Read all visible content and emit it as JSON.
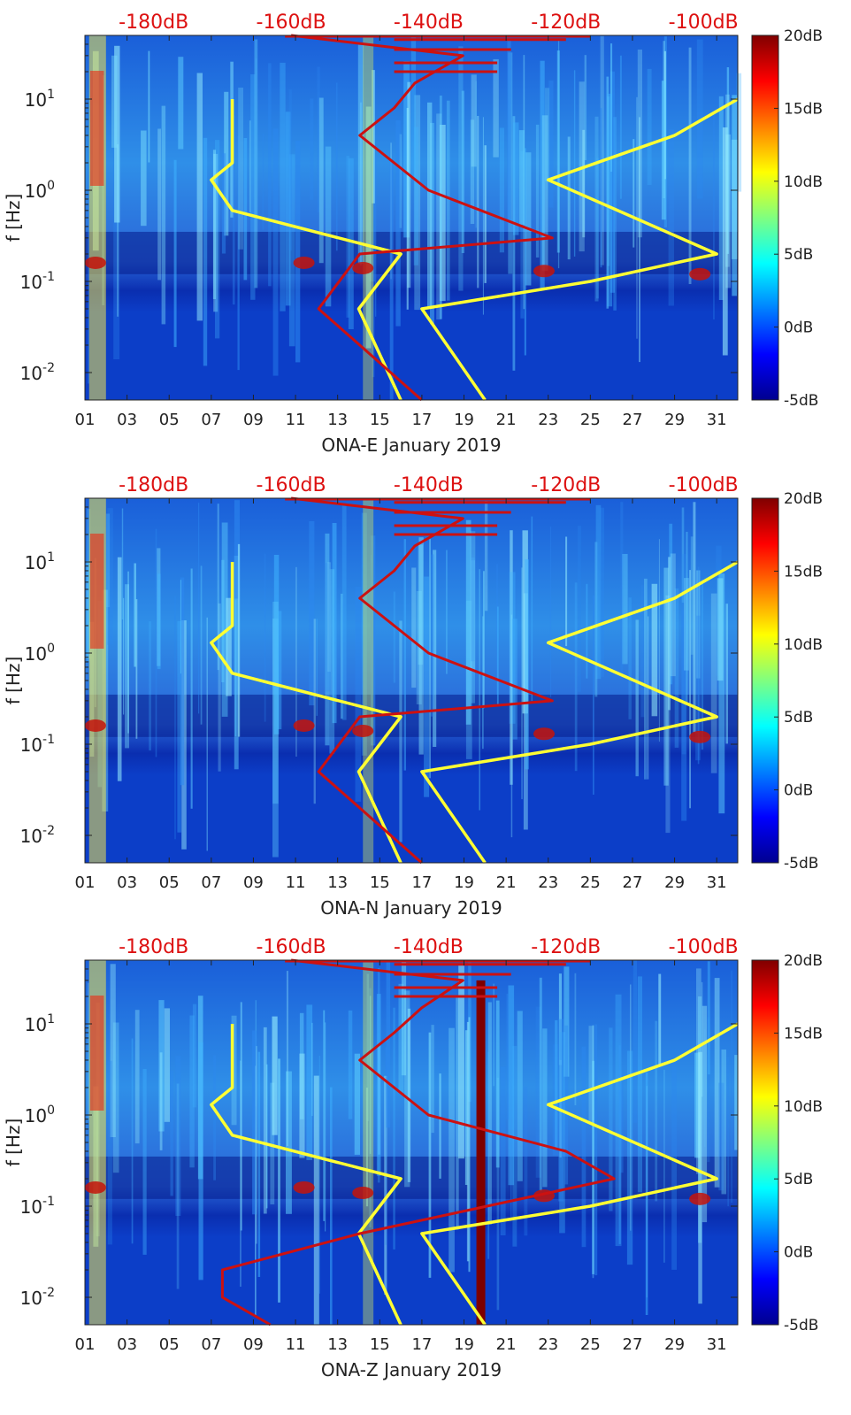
{
  "colors": {
    "noise_model": "#ffff33",
    "psd_curve": "#cc1111",
    "top_axis_text": "#dd1111",
    "axis_text": "#222222"
  },
  "chart_data": [
    {
      "type": "heatmap",
      "title": "",
      "xlabel": "ONA-E January 2019",
      "ylabel": "f [Hz]",
      "x_tick_labels": [
        "01",
        "03",
        "05",
        "07",
        "09",
        "11",
        "13",
        "15",
        "17",
        "19",
        "21",
        "23",
        "25",
        "27",
        "29",
        "31"
      ],
      "x_tick_days": [
        1,
        3,
        5,
        7,
        9,
        11,
        13,
        15,
        17,
        19,
        21,
        23,
        25,
        27,
        29,
        31
      ],
      "xlim": [
        1,
        32
      ],
      "ylim": [
        0.005,
        50
      ],
      "y_scale": "log",
      "y_tick_labels": [
        {
          "base": "10",
          "exp": "-2",
          "value": 0.01
        },
        {
          "base": "10",
          "exp": "-1",
          "value": 0.1
        },
        {
          "base": "10",
          "exp": "0",
          "value": 1
        },
        {
          "base": "10",
          "exp": "1",
          "value": 10
        }
      ],
      "colorbar": {
        "labels": [
          "20dB",
          "15dB",
          "10dB",
          "5dB",
          "0dB",
          "-5dB"
        ],
        "values": [
          20,
          15,
          10,
          5,
          0,
          -5
        ],
        "range": [
          -5,
          20
        ]
      },
      "top_axis": {
        "labels": [
          "-180dB",
          "-160dB",
          "-140dB",
          "-120dB",
          "-100dB"
        ],
        "values": [
          -180,
          -160,
          -140,
          -120,
          -100
        ],
        "range": [
          -190,
          -95
        ]
      },
      "series": [
        {
          "name": "noise-model-limits",
          "axis": "bottom",
          "points": [
            [
              16,
              0.005
            ],
            [
              14,
              0.05
            ],
            [
              16,
              0.2
            ],
            [
              8,
              0.6
            ],
            [
              7,
              1.3
            ],
            [
              8,
              2
            ],
            [
              8,
              10
            ]
          ]
        },
        {
          "name": "noise-model-limits",
          "axis": "bottom",
          "points": [
            [
              20,
              0.005
            ],
            [
              17,
              0.05
            ],
            [
              25,
              0.1
            ],
            [
              31,
              0.2
            ],
            [
              23,
              1.3
            ],
            [
              29,
              4
            ],
            [
              32,
              10
            ]
          ]
        },
        {
          "name": "psd-curve",
          "axis": "top",
          "points": [
            [
              -141,
              0.005
            ],
            [
              -150,
              0.02
            ],
            [
              -156,
              0.05
            ],
            [
              -150,
              0.2
            ],
            [
              -122,
              0.3
            ],
            [
              -140,
              1.0
            ],
            [
              -150,
              4
            ],
            [
              -145,
              8
            ],
            [
              -142,
              15
            ],
            [
              -135,
              30
            ],
            [
              -160,
              50
            ]
          ]
        }
      ],
      "top_spikes": [
        [
          -130,
          20
        ],
        [
          -130,
          25
        ],
        [
          -128,
          35
        ],
        [
          -120,
          45
        ]
      ]
    },
    {
      "type": "heatmap",
      "title": "",
      "xlabel": "ONA-N January 2019",
      "ylabel": "f [Hz]",
      "x_tick_labels": [
        "01",
        "03",
        "05",
        "07",
        "09",
        "11",
        "13",
        "15",
        "17",
        "19",
        "21",
        "23",
        "25",
        "27",
        "29",
        "31"
      ],
      "x_tick_days": [
        1,
        3,
        5,
        7,
        9,
        11,
        13,
        15,
        17,
        19,
        21,
        23,
        25,
        27,
        29,
        31
      ],
      "xlim": [
        1,
        32
      ],
      "ylim": [
        0.005,
        50
      ],
      "y_scale": "log",
      "y_tick_labels": [
        {
          "base": "10",
          "exp": "-2",
          "value": 0.01
        },
        {
          "base": "10",
          "exp": "-1",
          "value": 0.1
        },
        {
          "base": "10",
          "exp": "0",
          "value": 1
        },
        {
          "base": "10",
          "exp": "1",
          "value": 10
        }
      ],
      "colorbar": {
        "labels": [
          "20dB",
          "15dB",
          "10dB",
          "5dB",
          "0dB",
          "-5dB"
        ],
        "values": [
          20,
          15,
          10,
          5,
          0,
          -5
        ],
        "range": [
          -5,
          20
        ]
      },
      "top_axis": {
        "labels": [
          "-180dB",
          "-160dB",
          "-140dB",
          "-120dB",
          "-100dB"
        ],
        "values": [
          -180,
          -160,
          -140,
          -120,
          -100
        ],
        "range": [
          -190,
          -95
        ]
      },
      "series": [
        {
          "name": "noise-model-limits",
          "axis": "bottom",
          "points": [
            [
              16,
              0.005
            ],
            [
              14,
              0.05
            ],
            [
              16,
              0.2
            ],
            [
              8,
              0.6
            ],
            [
              7,
              1.3
            ],
            [
              8,
              2
            ],
            [
              8,
              10
            ]
          ]
        },
        {
          "name": "noise-model-limits",
          "axis": "bottom",
          "points": [
            [
              20,
              0.005
            ],
            [
              17,
              0.05
            ],
            [
              25,
              0.1
            ],
            [
              31,
              0.2
            ],
            [
              23,
              1.3
            ],
            [
              29,
              4
            ],
            [
              32,
              10
            ]
          ]
        },
        {
          "name": "psd-curve",
          "axis": "top",
          "points": [
            [
              -141,
              0.005
            ],
            [
              -150,
              0.02
            ],
            [
              -156,
              0.05
            ],
            [
              -150,
              0.2
            ],
            [
              -122,
              0.3
            ],
            [
              -140,
              1.0
            ],
            [
              -150,
              4
            ],
            [
              -145,
              8
            ],
            [
              -142,
              15
            ],
            [
              -135,
              30
            ],
            [
              -160,
              50
            ]
          ]
        }
      ],
      "top_spikes": [
        [
          -130,
          20
        ],
        [
          -130,
          25
        ],
        [
          -128,
          35
        ],
        [
          -120,
          45
        ]
      ]
    },
    {
      "type": "heatmap",
      "title": "",
      "xlabel": "ONA-Z January 2019",
      "ylabel": "f [Hz]",
      "x_tick_labels": [
        "01",
        "03",
        "05",
        "07",
        "09",
        "11",
        "13",
        "15",
        "17",
        "19",
        "21",
        "23",
        "25",
        "27",
        "29",
        "31"
      ],
      "x_tick_days": [
        1,
        3,
        5,
        7,
        9,
        11,
        13,
        15,
        17,
        19,
        21,
        23,
        25,
        27,
        29,
        31
      ],
      "xlim": [
        1,
        32
      ],
      "ylim": [
        0.005,
        50
      ],
      "y_scale": "log",
      "y_tick_labels": [
        {
          "base": "10",
          "exp": "-2",
          "value": 0.01
        },
        {
          "base": "10",
          "exp": "-1",
          "value": 0.1
        },
        {
          "base": "10",
          "exp": "0",
          "value": 1
        },
        {
          "base": "10",
          "exp": "1",
          "value": 10
        }
      ],
      "colorbar": {
        "labels": [
          "20dB",
          "15dB",
          "10dB",
          "5dB",
          "0dB",
          "-5dB"
        ],
        "values": [
          20,
          15,
          10,
          5,
          0,
          -5
        ],
        "range": [
          -5,
          20
        ]
      },
      "top_axis": {
        "labels": [
          "-180dB",
          "-160dB",
          "-140dB",
          "-120dB",
          "-100dB"
        ],
        "values": [
          -180,
          -160,
          -140,
          -120,
          -100
        ],
        "range": [
          -190,
          -95
        ]
      },
      "series": [
        {
          "name": "noise-model-limits",
          "axis": "bottom",
          "points": [
            [
              16,
              0.005
            ],
            [
              14,
              0.05
            ],
            [
              16,
              0.2
            ],
            [
              8,
              0.6
            ],
            [
              7,
              1.3
            ],
            [
              8,
              2
            ],
            [
              8,
              10
            ]
          ]
        },
        {
          "name": "noise-model-limits",
          "axis": "bottom",
          "points": [
            [
              20,
              0.005
            ],
            [
              17,
              0.05
            ],
            [
              25,
              0.1
            ],
            [
              31,
              0.2
            ],
            [
              23,
              1.3
            ],
            [
              29,
              4
            ],
            [
              32,
              10
            ]
          ]
        },
        {
          "name": "psd-curve",
          "axis": "top",
          "points": [
            [
              -163,
              0.005
            ],
            [
              -170,
              0.01
            ],
            [
              -170,
              0.02
            ],
            [
              -150,
              0.05
            ],
            [
              -113,
              0.2
            ],
            [
              -120,
              0.4
            ],
            [
              -140,
              1.0
            ],
            [
              -150,
              4
            ],
            [
              -145,
              8
            ],
            [
              -141,
              15
            ],
            [
              -135,
              30
            ],
            [
              -160,
              50
            ]
          ]
        }
      ],
      "top_spikes": [
        [
          -130,
          20
        ],
        [
          -130,
          25
        ],
        [
          -128,
          35
        ],
        [
          -120,
          45
        ]
      ],
      "data_gap_day": 19.8
    }
  ]
}
